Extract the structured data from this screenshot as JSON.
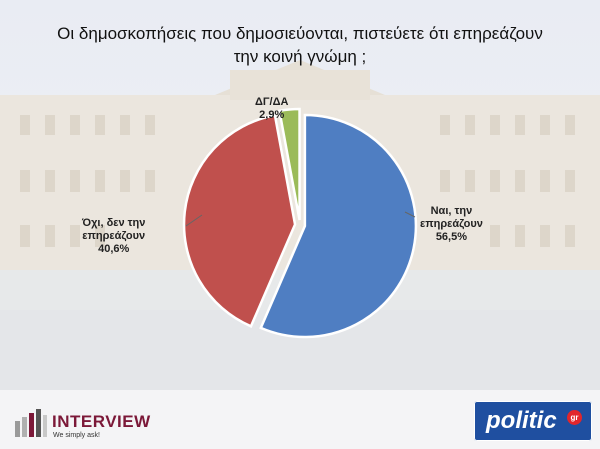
{
  "title_lines": [
    "Οι δημοσκοπήσεις που δημοσιεύονται, πιστεύετε ότι επηρεάζουν",
    "την κοινή γνώμη ;"
  ],
  "chart_data": {
    "type": "pie",
    "title": "Οι δημοσκοπήσεις που δημοσιεύονται, πιστεύετε ότι επηρεάζουν την κοινή γνώμη ;",
    "slices": [
      {
        "label_lines": [
          "Ναι, την",
          "επηρεάζουν"
        ],
        "label": "Ναι, την επηρεάζουν",
        "value": 56.5,
        "value_text": "56,5%",
        "color": "#4f7ec2"
      },
      {
        "label_lines": [
          "Όχι, δεν την",
          "επηρεάζουν"
        ],
        "label": "Όχι, δεν την επηρεάζουν",
        "value": 40.6,
        "value_text": "40,6%",
        "color": "#c0504d"
      },
      {
        "label_lines": [
          "ΔΓ/ΔΑ"
        ],
        "label": "ΔΓ/ΔΑ",
        "value": 2.9,
        "value_text": "2,9%",
        "color": "#9bbb59"
      }
    ],
    "start_at": "top",
    "direction": "clockwise",
    "exploded": true
  },
  "logos": {
    "left_brand": "INTERVIEW",
    "left_tagline": "We simply ask!",
    "left_brand_color": "#7b1838",
    "right_brand": "politic",
    "right_badge": "gr",
    "right_color": "#1f4fa0",
    "right_badge_color": "#e2262b"
  }
}
